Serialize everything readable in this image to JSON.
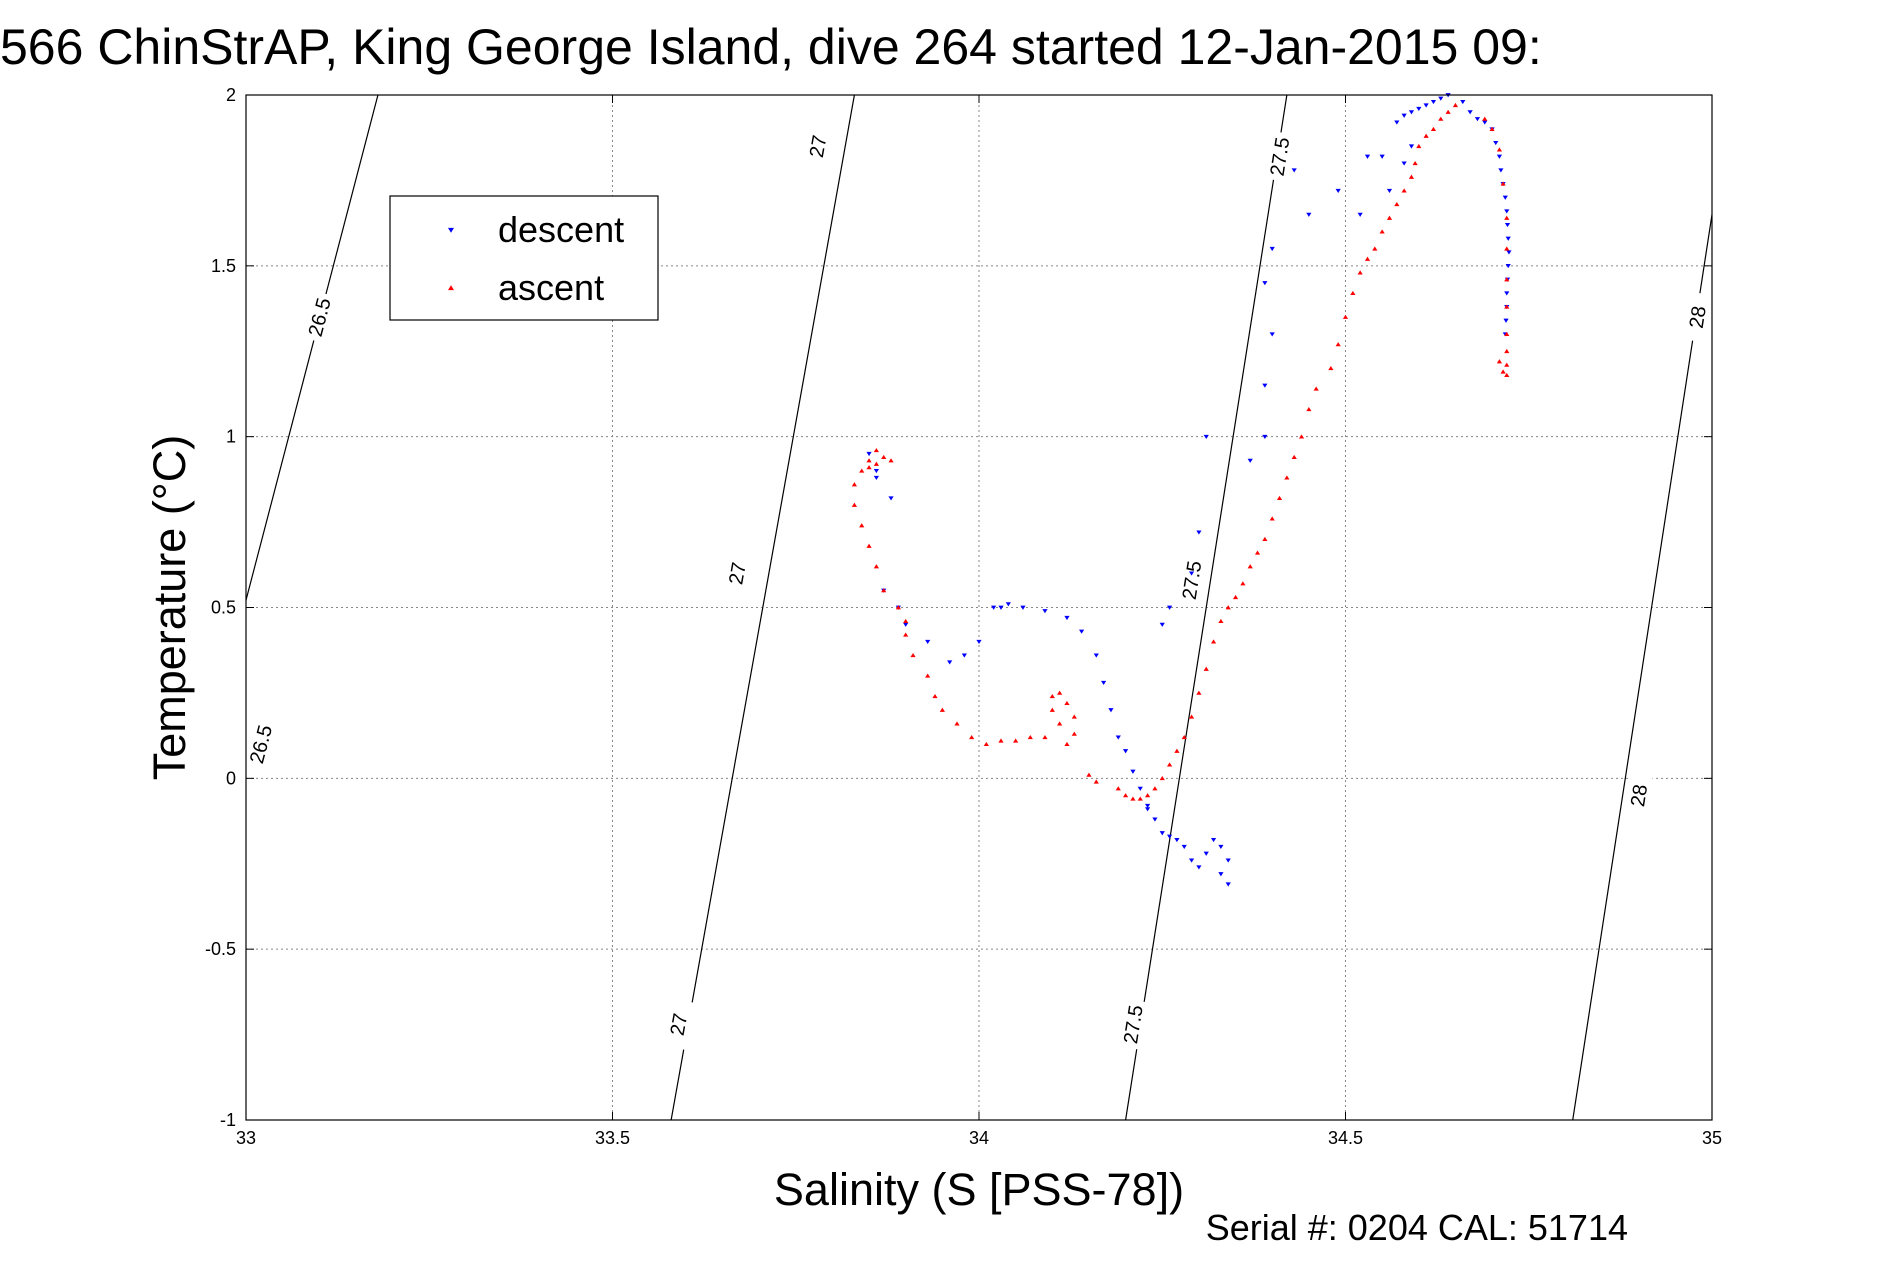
{
  "chart_data": {
    "type": "scatter",
    "title": "566 ChinStrAP, King George Island, dive 264 started 12-Jan-2015 09:",
    "xlabel": "Salinity (S [PSS-78])",
    "ylabel": "Temperature (°C)",
    "xlim": [
      33,
      35
    ],
    "ylim": [
      -1,
      2
    ],
    "xticks": [
      33,
      33.5,
      34,
      34.5,
      35
    ],
    "xtick_labels": [
      "33",
      "33.5",
      "34",
      "34.5",
      "35"
    ],
    "yticks": [
      -1,
      -0.5,
      0,
      0.5,
      1,
      1.5,
      2
    ],
    "ytick_labels": [
      "-1",
      "-0.5",
      "0",
      "0.5",
      "1",
      "1.5",
      "2"
    ],
    "grid": true,
    "legend_position": "top-left",
    "footer": "Serial #: 0204  CAL: 51714",
    "density_contours": [
      {
        "label": "26.5",
        "points": [
          [
            32.9,
            -0.3
          ],
          [
            33.18,
            2.0
          ]
        ],
        "label_positions": [
          [
            33.02,
            0.1
          ],
          [
            33.1,
            1.35
          ]
        ]
      },
      {
        "label": "27",
        "points": [
          [
            33.58,
            -1.0
          ],
          [
            33.83,
            2.0
          ]
        ],
        "label_positions": [
          [
            33.59,
            -0.72
          ],
          [
            33.67,
            0.6
          ],
          [
            33.78,
            1.85
          ]
        ]
      },
      {
        "label": "27.5",
        "points": [
          [
            34.2,
            -1.0
          ],
          [
            34.42,
            2.0
          ]
        ],
        "label_positions": [
          [
            34.21,
            -0.72
          ],
          [
            34.29,
            0.58
          ],
          [
            34.41,
            1.82
          ]
        ]
      },
      {
        "label": "28",
        "points": [
          [
            34.81,
            -1.0
          ],
          [
            35.0,
            1.65
          ]
        ],
        "label_positions": [
          [
            34.9,
            -0.05
          ],
          [
            34.98,
            1.35
          ]
        ]
      }
    ],
    "series": [
      {
        "name": "descent",
        "color": "#0000ff",
        "marker": "triangle-down",
        "points": [
          [
            34.64,
            2.0
          ],
          [
            34.63,
            1.99
          ],
          [
            34.62,
            1.98
          ],
          [
            34.61,
            1.97
          ],
          [
            34.6,
            1.96
          ],
          [
            34.59,
            1.95
          ],
          [
            34.58,
            1.94
          ],
          [
            34.57,
            1.92
          ],
          [
            34.66,
            1.98
          ],
          [
            34.67,
            1.95
          ],
          [
            34.68,
            1.93
          ],
          [
            34.69,
            1.92
          ],
          [
            34.7,
            1.9
          ],
          [
            34.705,
            1.86
          ],
          [
            34.71,
            1.82
          ],
          [
            34.712,
            1.78
          ],
          [
            34.715,
            1.74
          ],
          [
            34.718,
            1.7
          ],
          [
            34.72,
            1.66
          ],
          [
            34.721,
            1.62
          ],
          [
            34.722,
            1.58
          ],
          [
            34.723,
            1.54
          ],
          [
            34.722,
            1.5
          ],
          [
            34.721,
            1.46
          ],
          [
            34.72,
            1.42
          ],
          [
            34.72,
            1.38
          ],
          [
            34.719,
            1.34
          ],
          [
            34.718,
            1.3
          ],
          [
            34.59,
            1.85
          ],
          [
            34.58,
            1.8
          ],
          [
            34.56,
            1.72
          ],
          [
            34.55,
            1.82
          ],
          [
            34.53,
            1.82
          ],
          [
            34.52,
            1.65
          ],
          [
            34.49,
            1.72
          ],
          [
            34.45,
            1.65
          ],
          [
            34.43,
            1.78
          ],
          [
            34.4,
            1.55
          ],
          [
            34.39,
            1.45
          ],
          [
            34.4,
            1.3
          ],
          [
            34.39,
            1.15
          ],
          [
            34.39,
            1.0
          ],
          [
            34.37,
            0.93
          ],
          [
            34.31,
            1.0
          ],
          [
            34.3,
            0.72
          ],
          [
            34.29,
            0.6
          ],
          [
            34.26,
            0.5
          ],
          [
            34.25,
            0.45
          ],
          [
            34.02,
            0.5
          ],
          [
            34.03,
            0.5
          ],
          [
            34.04,
            0.51
          ],
          [
            34.06,
            0.5
          ],
          [
            34.09,
            0.49
          ],
          [
            34.12,
            0.47
          ],
          [
            34.14,
            0.43
          ],
          [
            34.16,
            0.36
          ],
          [
            34.17,
            0.28
          ],
          [
            34.18,
            0.2
          ],
          [
            34.19,
            0.12
          ],
          [
            34.2,
            0.08
          ],
          [
            34.21,
            0.02
          ],
          [
            34.22,
            -0.03
          ],
          [
            34.23,
            -0.08
          ],
          [
            34.24,
            -0.12
          ],
          [
            34.25,
            -0.16
          ],
          [
            34.27,
            -0.18
          ],
          [
            34.28,
            -0.2
          ],
          [
            34.29,
            -0.24
          ],
          [
            34.3,
            -0.26
          ],
          [
            34.31,
            -0.22
          ],
          [
            34.32,
            -0.18
          ],
          [
            34.33,
            -0.2
          ],
          [
            34.34,
            -0.24
          ],
          [
            34.34,
            -0.31
          ],
          [
            34.33,
            -0.28
          ],
          [
            34.26,
            -0.17
          ],
          [
            34.23,
            -0.09
          ],
          [
            34.0,
            0.4
          ],
          [
            33.98,
            0.36
          ],
          [
            33.96,
            0.34
          ],
          [
            33.93,
            0.4
          ],
          [
            33.9,
            0.45
          ],
          [
            33.89,
            0.5
          ],
          [
            33.87,
            0.55
          ],
          [
            33.88,
            0.82
          ],
          [
            33.86,
            0.9
          ],
          [
            33.85,
            0.95
          ],
          [
            33.86,
            0.88
          ]
        ]
      },
      {
        "name": "ascent",
        "color": "#ff0000",
        "marker": "triangle-up",
        "points": [
          [
            34.65,
            1.97
          ],
          [
            34.64,
            1.95
          ],
          [
            34.63,
            1.93
          ],
          [
            34.62,
            1.9
          ],
          [
            34.61,
            1.88
          ],
          [
            34.6,
            1.85
          ],
          [
            34.595,
            1.8
          ],
          [
            34.59,
            1.76
          ],
          [
            34.58,
            1.72
          ],
          [
            34.57,
            1.68
          ],
          [
            34.56,
            1.64
          ],
          [
            34.55,
            1.6
          ],
          [
            34.54,
            1.55
          ],
          [
            34.53,
            1.52
          ],
          [
            34.52,
            1.48
          ],
          [
            34.51,
            1.42
          ],
          [
            34.5,
            1.35
          ],
          [
            34.49,
            1.27
          ],
          [
            34.48,
            1.2
          ],
          [
            34.46,
            1.14
          ],
          [
            34.45,
            1.08
          ],
          [
            34.44,
            1.0
          ],
          [
            34.43,
            0.94
          ],
          [
            34.42,
            0.88
          ],
          [
            34.41,
            0.82
          ],
          [
            34.4,
            0.76
          ],
          [
            34.39,
            0.7
          ],
          [
            34.38,
            0.66
          ],
          [
            34.37,
            0.62
          ],
          [
            34.36,
            0.57
          ],
          [
            34.35,
            0.53
          ],
          [
            34.34,
            0.5
          ],
          [
            34.33,
            0.46
          ],
          [
            34.32,
            0.4
          ],
          [
            34.31,
            0.32
          ],
          [
            34.3,
            0.25
          ],
          [
            34.29,
            0.18
          ],
          [
            34.28,
            0.12
          ],
          [
            34.27,
            0.08
          ],
          [
            34.26,
            0.04
          ],
          [
            34.25,
            0.0
          ],
          [
            34.24,
            -0.03
          ],
          [
            34.23,
            -0.05
          ],
          [
            34.22,
            -0.06
          ],
          [
            34.21,
            -0.06
          ],
          [
            34.2,
            -0.05
          ],
          [
            34.19,
            -0.03
          ],
          [
            34.16,
            -0.01
          ],
          [
            34.15,
            0.01
          ],
          [
            34.12,
            0.1
          ],
          [
            34.13,
            0.13
          ],
          [
            34.13,
            0.18
          ],
          [
            34.12,
            0.22
          ],
          [
            34.11,
            0.25
          ],
          [
            34.1,
            0.24
          ],
          [
            34.1,
            0.2
          ],
          [
            34.11,
            0.16
          ],
          [
            34.09,
            0.12
          ],
          [
            34.07,
            0.12
          ],
          [
            34.05,
            0.11
          ],
          [
            34.03,
            0.11
          ],
          [
            34.01,
            0.1
          ],
          [
            33.99,
            0.12
          ],
          [
            33.97,
            0.16
          ],
          [
            33.95,
            0.2
          ],
          [
            33.94,
            0.24
          ],
          [
            33.93,
            0.3
          ],
          [
            33.91,
            0.36
          ],
          [
            33.9,
            0.42
          ],
          [
            33.9,
            0.46
          ],
          [
            33.89,
            0.5
          ],
          [
            33.87,
            0.55
          ],
          [
            33.86,
            0.62
          ],
          [
            33.85,
            0.68
          ],
          [
            33.84,
            0.74
          ],
          [
            33.83,
            0.8
          ],
          [
            33.83,
            0.86
          ],
          [
            33.84,
            0.9
          ],
          [
            33.85,
            0.93
          ],
          [
            33.86,
            0.96
          ],
          [
            33.87,
            0.94
          ],
          [
            33.86,
            0.92
          ],
          [
            33.85,
            0.91
          ],
          [
            33.88,
            0.93
          ],
          [
            34.69,
            1.93
          ],
          [
            34.7,
            1.9
          ],
          [
            34.71,
            1.84
          ],
          [
            34.715,
            1.74
          ],
          [
            34.72,
            1.64
          ],
          [
            34.72,
            1.55
          ],
          [
            34.72,
            1.46
          ],
          [
            34.72,
            1.38
          ],
          [
            34.72,
            1.3
          ],
          [
            34.72,
            1.25
          ],
          [
            34.72,
            1.21
          ],
          [
            34.72,
            1.18
          ],
          [
            34.715,
            1.19
          ],
          [
            34.71,
            1.22
          ]
        ]
      }
    ]
  }
}
